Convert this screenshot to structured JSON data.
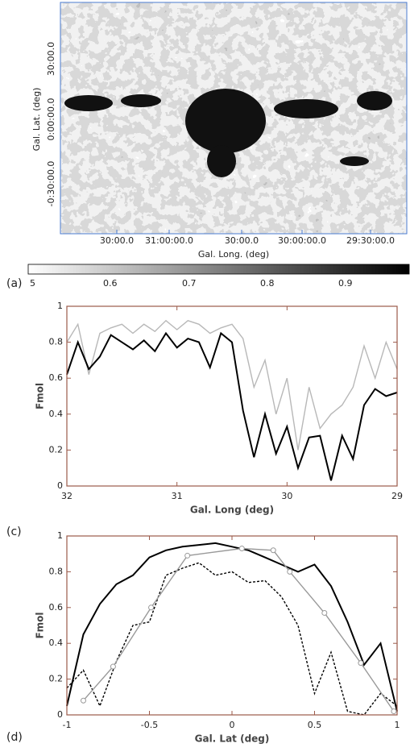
{
  "chart_data": [
    {
      "type": "image",
      "label": "(a)",
      "xlabel": "Gal. Long. (deg)",
      "ylabel": "Gal. Lat. (deg)",
      "xtick_labels": [
        "30:00.0",
        "31:00:00.0",
        "30:00.0",
        "30:00:00.0",
        "29:30:00.0"
      ],
      "ytick_labels": [
        "30:00.0",
        "0:00:00.0",
        "-0:30:00.0"
      ],
      "colorbar": {
        "colors": [
          "#ffffff",
          "#000000"
        ],
        "labels": [
          "5",
          "0.6",
          "0.7",
          "0.8",
          "0.9"
        ]
      }
    },
    {
      "type": "line",
      "label": "(c)",
      "xlabel": "Gal. Long (deg)",
      "ylabel": "Fmol",
      "xlim": [
        32,
        29
      ],
      "ylim": [
        0,
        1
      ],
      "xticks": [
        32,
        31,
        30,
        29
      ],
      "yticks": [
        0,
        0.2,
        0.4,
        0.6,
        0.8,
        1
      ],
      "x": [
        32,
        31.9,
        31.8,
        31.7,
        31.6,
        31.5,
        31.4,
        31.3,
        31.2,
        31.1,
        31,
        30.9,
        30.8,
        30.7,
        30.6,
        30.5,
        30.4,
        30.3,
        30.2,
        30.1,
        30,
        29.9,
        29.8,
        29.7,
        29.6,
        29.5,
        29.4,
        29.3,
        29.2,
        29.1,
        29
      ],
      "series": [
        {
          "color": "#b8b8b8",
          "values": [
            0.8,
            0.9,
            0.62,
            0.85,
            0.88,
            0.9,
            0.85,
            0.9,
            0.86,
            0.92,
            0.87,
            0.92,
            0.9,
            0.85,
            0.88,
            0.9,
            0.82,
            0.55,
            0.7,
            0.4,
            0.6,
            0.2,
            0.55,
            0.32,
            0.4,
            0.45,
            0.55,
            0.78,
            0.6,
            0.8,
            0.65
          ]
        },
        {
          "color": "#000000",
          "values": [
            0.62,
            0.8,
            0.65,
            0.72,
            0.84,
            0.8,
            0.76,
            0.81,
            0.75,
            0.85,
            0.77,
            0.82,
            0.8,
            0.66,
            0.85,
            0.8,
            0.42,
            0.16,
            0.4,
            0.18,
            0.33,
            0.1,
            0.27,
            0.28,
            0.03,
            0.28,
            0.15,
            0.45,
            0.54,
            0.5,
            0.52
          ]
        }
      ]
    },
    {
      "type": "line",
      "label": "(d)",
      "xlabel": "Gal. Lat (deg)",
      "ylabel": "Fmol",
      "xlim": [
        -1,
        1
      ],
      "ylim": [
        0,
        1
      ],
      "xticks": [
        -1,
        -0.5,
        0,
        0.5,
        1
      ],
      "yticks": [
        0,
        0.2,
        0.4,
        0.6,
        0.8,
        1
      ],
      "series": [
        {
          "color": "#000000",
          "linestyle": "solid",
          "x": [
            -1,
            -0.9,
            -0.8,
            -0.7,
            -0.6,
            -0.5,
            -0.4,
            -0.3,
            -0.2,
            -0.1,
            0,
            0.1,
            0.2,
            0.3,
            0.4,
            0.5,
            0.6,
            0.7,
            0.8,
            0.9,
            1
          ],
          "values": [
            0.05,
            0.45,
            0.62,
            0.73,
            0.78,
            0.88,
            0.92,
            0.94,
            0.95,
            0.96,
            0.94,
            0.92,
            0.88,
            0.84,
            0.8,
            0.84,
            0.72,
            0.52,
            0.28,
            0.4,
            0.02
          ]
        },
        {
          "color": "#000000",
          "linestyle": "dashed",
          "x": [
            -1,
            -0.9,
            -0.8,
            -0.7,
            -0.6,
            -0.5,
            -0.4,
            -0.3,
            -0.2,
            -0.1,
            0,
            0.1,
            0.2,
            0.3,
            0.4,
            0.5,
            0.6,
            0.7,
            0.8,
            0.9,
            1
          ],
          "values": [
            0.15,
            0.25,
            0.05,
            0.3,
            0.5,
            0.52,
            0.78,
            0.82,
            0.85,
            0.78,
            0.8,
            0.74,
            0.75,
            0.66,
            0.5,
            0.12,
            0.35,
            0.02,
            0,
            0.12,
            0.05
          ]
        },
        {
          "color": "#999999",
          "linestyle": "solid",
          "marker": "circle",
          "x": [
            -0.9,
            -0.72,
            -0.49,
            -0.27,
            0.06,
            0.25,
            0.35,
            0.56,
            0.78,
            0.98
          ],
          "values": [
            0.08,
            0.27,
            0.6,
            0.89,
            0.93,
            0.92,
            0.8,
            0.57,
            0.29,
            0.02
          ]
        }
      ]
    }
  ]
}
